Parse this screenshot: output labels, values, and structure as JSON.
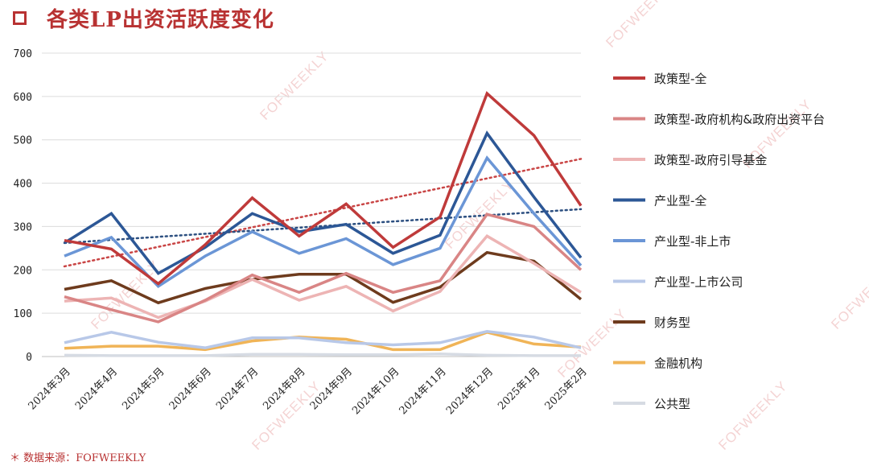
{
  "title": "各类LP出资活跃度变化",
  "source": "＊ 数据来源：FOFWEEKLY",
  "watermark_text": "FOFWEEKLY",
  "chart_data": {
    "type": "line",
    "categories": [
      "2024年3月",
      "2024年4月",
      "2024年5月",
      "2024年6月",
      "2024年7月",
      "2024年8月",
      "2024年9月",
      "2024年10月",
      "2024年11月",
      "2024年12月",
      "2025年1月",
      "2025年2月"
    ],
    "ylim": [
      0,
      700
    ],
    "yticks": [
      0,
      100,
      200,
      300,
      400,
      500,
      600,
      700
    ],
    "grid": true,
    "legend_position": "right",
    "series": [
      {
        "name": "政策型-全",
        "color": "#bf3a3a",
        "width": 3.5,
        "values": [
          268,
          248,
          168,
          258,
          366,
          278,
          352,
          252,
          322,
          607,
          510,
          348
        ]
      },
      {
        "name": "政策型-政府机构&政府出资平台",
        "color": "#d98585",
        "width": 3.5,
        "values": [
          138,
          108,
          80,
          130,
          188,
          148,
          192,
          148,
          175,
          328,
          300,
          200
        ]
      },
      {
        "name": "政策型-政府引导基金",
        "color": "#edb4b4",
        "width": 3.5,
        "values": [
          128,
          135,
          90,
          128,
          178,
          130,
          162,
          105,
          150,
          278,
          215,
          148
        ]
      },
      {
        "name": "产业型-全",
        "color": "#2c5796",
        "width": 3.5,
        "values": [
          262,
          330,
          192,
          252,
          330,
          288,
          305,
          238,
          280,
          515,
          368,
          228
        ]
      },
      {
        "name": "产业型-非上市",
        "color": "#6b96d6",
        "width": 3.5,
        "values": [
          232,
          275,
          162,
          232,
          288,
          238,
          272,
          212,
          250,
          458,
          330,
          210
        ]
      },
      {
        "name": "产业型-上市公司",
        "color": "#b8c8e8",
        "width": 3.5,
        "values": [
          32,
          56,
          33,
          20,
          43,
          43,
          32,
          27,
          32,
          58,
          45,
          20
        ]
      },
      {
        "name": "财务型",
        "color": "#6e3b1d",
        "width": 3.5,
        "values": [
          155,
          175,
          124,
          157,
          178,
          190,
          190,
          125,
          160,
          240,
          220,
          132
        ]
      },
      {
        "name": "金融机构",
        "color": "#f0b457",
        "width": 3.5,
        "values": [
          19,
          24,
          24,
          16,
          36,
          45,
          40,
          16,
          16,
          56,
          29,
          22
        ]
      },
      {
        "name": "公共型",
        "color": "#d6dbe3",
        "width": 3.5,
        "values": [
          3,
          2,
          2,
          2,
          5,
          5,
          4,
          4,
          6,
          3,
          2,
          2
        ]
      }
    ],
    "trendlines": [
      {
        "color": "#c94545",
        "from": 208,
        "to": 456
      },
      {
        "color": "#2c4f80",
        "from": 262,
        "to": 340
      }
    ]
  }
}
